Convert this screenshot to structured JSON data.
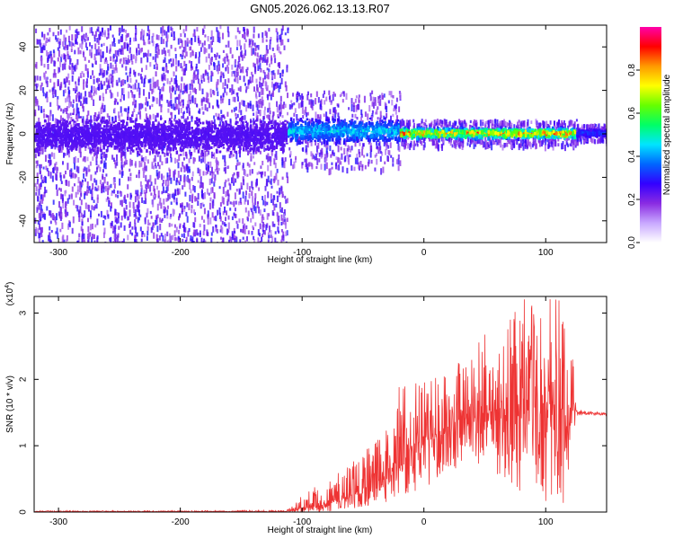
{
  "figure": {
    "title": "GN05.2026.062.13.13.R07"
  },
  "chart_data": [
    {
      "type": "heatmap",
      "xlabel": "Height of straight line (km)",
      "ylabel": "Frequency (Hz)",
      "xlim": [
        -320,
        150
      ],
      "ylim": [
        -50,
        50
      ],
      "xticks": [
        -300,
        -200,
        -100,
        0,
        100
      ],
      "yticks": [
        -40,
        -20,
        0,
        20,
        40
      ],
      "xtick_labels": [
        "-300",
        "-200",
        "-100",
        "0",
        "100"
      ],
      "ytick_labels": [
        "-40",
        "-20",
        "0",
        "20",
        "40"
      ],
      "colorbar": {
        "label": "Normalized spectral amplitude",
        "range": [
          0,
          1
        ],
        "ticks": [
          0.0,
          0.2,
          0.4,
          0.6,
          0.8
        ],
        "tick_labels": [
          "0.0",
          "0.2",
          "0.4",
          "0.6",
          "0.8"
        ],
        "colors": [
          "#ffffff",
          "#c8a8ff",
          "#8a2be2",
          "#3300ff",
          "#0066ff",
          "#00e5ff",
          "#00ff66",
          "#66ff00",
          "#ffff00",
          "#ff9900",
          "#ff0000",
          "#ff00aa"
        ]
      },
      "regions": [
        {
          "x": [
            -320,
            -112
          ],
          "center_hz": 0,
          "core_halfwidth_hz": 10,
          "scatter_halfwidth_hz": 50,
          "peak_amplitude": 0.25
        },
        {
          "x": [
            -112,
            -20
          ],
          "center_hz": 2,
          "core_halfwidth_hz": 7,
          "scatter_halfwidth_hz": 18,
          "peak_amplitude": 0.5
        },
        {
          "x": [
            -20,
            125
          ],
          "center_hz": 1,
          "core_halfwidth_hz": 3,
          "scatter_halfwidth_hz": 6,
          "peak_amplitude": 0.95
        },
        {
          "x": [
            125,
            150
          ],
          "center_hz": 1,
          "core_halfwidth_hz": 2,
          "scatter_halfwidth_hz": 4,
          "peak_amplitude": 0.35
        }
      ]
    },
    {
      "type": "line",
      "xlabel": "Height of straight line (km)",
      "ylabel": "SNR (10 * v/v)",
      "y_multiplier": "(x10",
      "y_multiplier_exponent": "4",
      "y_multiplier_close": ")",
      "xlim": [
        -320,
        150
      ],
      "ylim": [
        0,
        3.25
      ],
      "xticks": [
        -300,
        -200,
        -100,
        0,
        100
      ],
      "yticks": [
        0,
        1,
        2,
        3
      ],
      "xtick_labels": [
        "-300",
        "-200",
        "-100",
        "0",
        "100"
      ],
      "ytick_labels": [
        "0",
        "1",
        "2",
        "3"
      ],
      "series_color": "#ee3333",
      "series": [
        {
          "x": [
            -320,
            -200,
            -112,
            -100,
            -80,
            -60,
            -40,
            -20,
            0,
            20,
            40,
            60,
            80,
            100,
            120,
            125,
            130,
            150
          ],
          "baseline": [
            0.01,
            0.01,
            0.01,
            0.05,
            0.12,
            0.25,
            0.45,
            0.75,
            1.05,
            1.3,
            1.45,
            1.55,
            1.6,
            1.62,
            1.55,
            1.5,
            1.5,
            1.48
          ],
          "upper_envelope": [
            0.02,
            0.02,
            0.03,
            0.25,
            0.5,
            0.75,
            1.05,
            1.9,
            2.0,
            2.1,
            2.6,
            2.9,
            3.2,
            3.25,
            3.2,
            1.55,
            1.53,
            1.5
          ],
          "lower_envelope": [
            0.0,
            0.0,
            0.0,
            0.0,
            0.0,
            0.05,
            0.1,
            0.2,
            0.35,
            0.6,
            0.7,
            0.5,
            0.3,
            0.15,
            0.1,
            1.45,
            1.46,
            1.46
          ]
        }
      ]
    }
  ]
}
